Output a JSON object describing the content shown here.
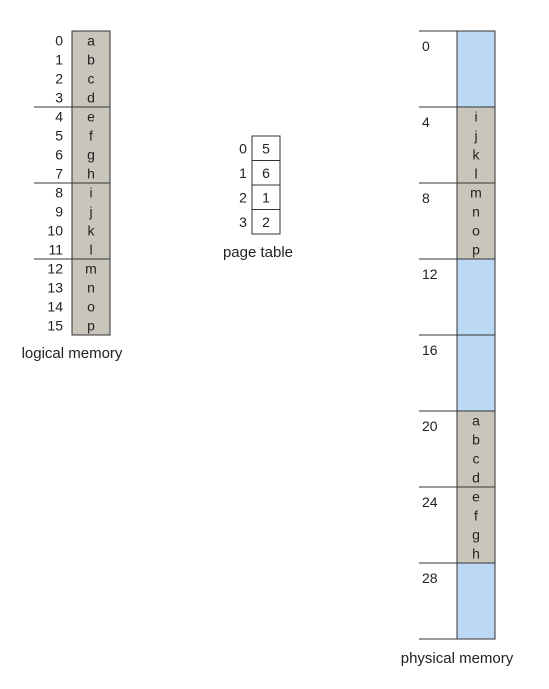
{
  "logical_memory": {
    "label": "logical memory",
    "cell_fill": "#c8c5bb",
    "addresses": [
      "0",
      "1",
      "2",
      "3",
      "4",
      "5",
      "6",
      "7",
      "8",
      "9",
      "10",
      "11",
      "12",
      "13",
      "14",
      "15"
    ],
    "contents": [
      "a",
      "b",
      "c",
      "d",
      "e",
      "f",
      "g",
      "h",
      "i",
      "j",
      "k",
      "l",
      "m",
      "n",
      "o",
      "p"
    ]
  },
  "page_table": {
    "label": "page table",
    "pages": [
      "0",
      "1",
      "2",
      "3"
    ],
    "frames": [
      "5",
      "6",
      "1",
      "2"
    ]
  },
  "physical_memory": {
    "label": "physical memory",
    "free_fill": "#bcd9f3",
    "used_fill": "#c8c5bb",
    "frames": [
      {
        "address": "0",
        "contents": []
      },
      {
        "address": "4",
        "contents": [
          "i",
          "j",
          "k",
          "l"
        ]
      },
      {
        "address": "8",
        "contents": [
          "m",
          "n",
          "o",
          "p"
        ]
      },
      {
        "address": "12",
        "contents": []
      },
      {
        "address": "16",
        "contents": []
      },
      {
        "address": "20",
        "contents": [
          "a",
          "b",
          "c",
          "d"
        ]
      },
      {
        "address": "24",
        "contents": [
          "e",
          "f",
          "g",
          "h"
        ]
      },
      {
        "address": "28",
        "contents": []
      }
    ]
  }
}
